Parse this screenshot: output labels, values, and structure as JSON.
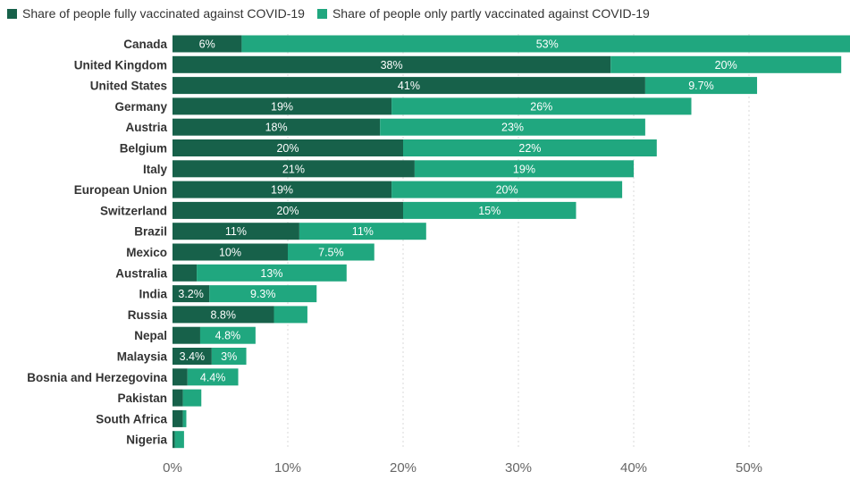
{
  "colors": {
    "fully": "#17614a",
    "partly": "#20a77f",
    "grid": "#d9d9d9",
    "text": "#333333"
  },
  "chart_data": {
    "type": "bar",
    "orientation": "horizontal",
    "stacked": true,
    "title": "",
    "xlabel": "",
    "ylabel": "",
    "legend_position": "top-left",
    "grid": true,
    "xlim": [
      0,
      58.5
    ],
    "x_ticks": [
      0,
      10,
      20,
      30,
      40,
      50
    ],
    "x_tick_labels": [
      "0%",
      "10%",
      "20%",
      "30%",
      "40%",
      "50%"
    ],
    "categories": [
      "Canada",
      "United Kingdom",
      "United States",
      "Germany",
      "Austria",
      "Belgium",
      "Italy",
      "European Union",
      "Switzerland",
      "Brazil",
      "Mexico",
      "Australia",
      "India",
      "Russia",
      "Nepal",
      "Malaysia",
      "Bosnia and Herzegovina",
      "Pakistan",
      "South Africa",
      "Nigeria"
    ],
    "series": [
      {
        "name": "Share of people fully vaccinated against COVID-19",
        "color": "#17614a",
        "values": [
          6,
          38,
          41,
          19,
          18,
          20,
          21,
          19,
          20,
          11,
          10,
          2.1,
          3.2,
          8.8,
          2.4,
          3.4,
          1.3,
          0.9,
          0.9,
          0.2
        ],
        "labels": [
          "6%",
          "38%",
          "41%",
          "19%",
          "18%",
          "20%",
          "21%",
          "19%",
          "20%",
          "11%",
          "10%",
          "",
          "3.2%",
          "8.8%",
          "",
          "3.4%",
          "",
          "",
          "",
          ""
        ]
      },
      {
        "name": "Share of people only partly vaccinated against COVID-19",
        "color": "#20a77f",
        "values": [
          53,
          20,
          9.7,
          26,
          23,
          22,
          19,
          20,
          15,
          11,
          7.5,
          13,
          9.3,
          2.9,
          4.8,
          3,
          4.4,
          1.6,
          0.3,
          0.8
        ],
        "labels": [
          "53%",
          "20%",
          "9.7%",
          "26%",
          "23%",
          "22%",
          "19%",
          "20%",
          "15%",
          "11%",
          "7.5%",
          "13%",
          "9.3%",
          "",
          "4.8%",
          "3%",
          "4.4%",
          "",
          "",
          ""
        ]
      }
    ]
  }
}
